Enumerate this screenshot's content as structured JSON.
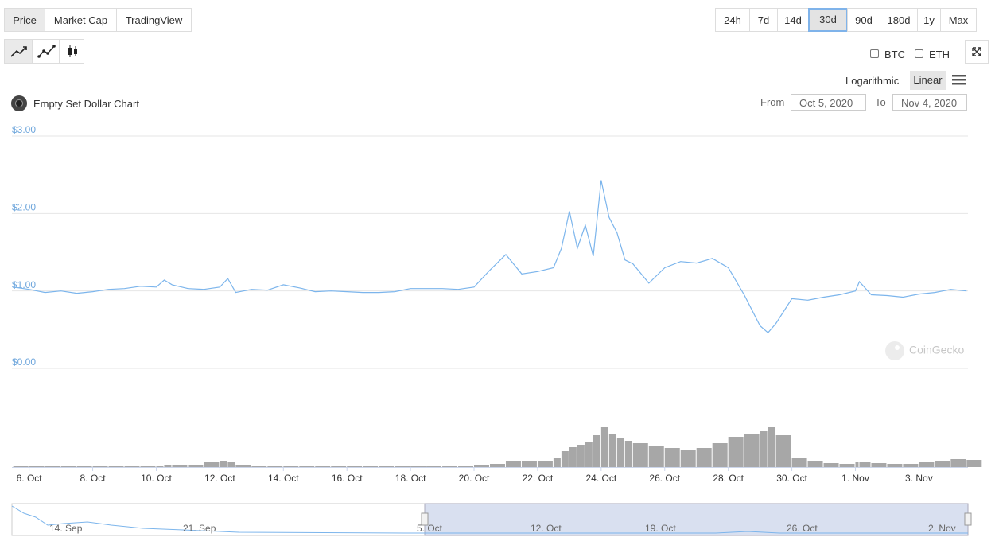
{
  "ui": {
    "tabs": [
      "Price",
      "Market Cap",
      "TradingView"
    ],
    "ranges": [
      "24h",
      "7d",
      "14d",
      "30d",
      "90d",
      "180d",
      "1y",
      "Max"
    ],
    "active_range": "30d",
    "compare": [
      "BTC",
      "ETH"
    ],
    "scales": [
      "Logarithmic",
      "Linear"
    ],
    "chart_name": "Empty Set Dollar Chart",
    "from_label": "From",
    "from_date": "Oct 5, 2020",
    "to_label": "To",
    "to_date": "Nov 4, 2020",
    "watermark": "CoinGecko",
    "navigator_labels": [
      "14. Sep",
      "21. Sep",
      "5. Oct",
      "12. Oct",
      "19. Oct",
      "26. Oct",
      "2. Nov"
    ]
  },
  "chart_data": {
    "type": "line",
    "color": "#7cb5ec",
    "volume_color": "#8a8a8a",
    "grid": true,
    "xlim": [
      "2020-10-05T11:00",
      "2020-11-04T13:00"
    ],
    "xticks": [
      {
        "value": "2020-10-06T00:00",
        "label": "6. Oct"
      },
      {
        "value": "2020-10-08T00:00",
        "label": "8. Oct"
      },
      {
        "value": "2020-10-10T00:00",
        "label": "10. Oct"
      },
      {
        "value": "2020-10-12T00:00",
        "label": "12. Oct"
      },
      {
        "value": "2020-10-14T00:00",
        "label": "14. Oct"
      },
      {
        "value": "2020-10-16T00:00",
        "label": "16. Oct"
      },
      {
        "value": "2020-10-18T00:00",
        "label": "18. Oct"
      },
      {
        "value": "2020-10-20T00:00",
        "label": "20. Oct"
      },
      {
        "value": "2020-10-22T00:00",
        "label": "22. Oct"
      },
      {
        "value": "2020-10-24T00:00",
        "label": "24. Oct"
      },
      {
        "value": "2020-10-26T00:00",
        "label": "26. Oct"
      },
      {
        "value": "2020-10-28T00:00",
        "label": "28. Oct"
      },
      {
        "value": "2020-10-30T00:00",
        "label": "30. Oct"
      },
      {
        "value": "2020-11-01T00:00",
        "label": "1. Nov"
      },
      {
        "value": "2020-11-03T00:00",
        "label": "3. Nov"
      }
    ],
    "ylim": [
      0,
      3
    ],
    "yticks": [
      {
        "value": 0,
        "label": "$0.00"
      },
      {
        "value": 1,
        "label": "$1.00"
      },
      {
        "value": 2,
        "label": "$2.00"
      },
      {
        "value": 3,
        "label": "$3.00"
      }
    ],
    "volume_lim": [
      0,
      60
    ],
    "x": [
      "2020-10-05T12:00",
      "2020-10-06T00:00",
      "2020-10-06T12:00",
      "2020-10-07T00:00",
      "2020-10-07T12:00",
      "2020-10-08T00:00",
      "2020-10-08T12:00",
      "2020-10-09T00:00",
      "2020-10-09T12:00",
      "2020-10-10T00:00",
      "2020-10-10T06:00",
      "2020-10-10T12:00",
      "2020-10-11T00:00",
      "2020-10-11T12:00",
      "2020-10-12T00:00",
      "2020-10-12T06:00",
      "2020-10-12T12:00",
      "2020-10-13T00:00",
      "2020-10-13T12:00",
      "2020-10-14T00:00",
      "2020-10-14T12:00",
      "2020-10-15T00:00",
      "2020-10-15T12:00",
      "2020-10-16T00:00",
      "2020-10-16T12:00",
      "2020-10-17T00:00",
      "2020-10-17T12:00",
      "2020-10-18T00:00",
      "2020-10-18T12:00",
      "2020-10-19T00:00",
      "2020-10-19T12:00",
      "2020-10-20T00:00",
      "2020-10-20T12:00",
      "2020-10-21T00:00",
      "2020-10-21T12:00",
      "2020-10-22T00:00",
      "2020-10-22T12:00",
      "2020-10-22T18:00",
      "2020-10-23T00:00",
      "2020-10-23T06:00",
      "2020-10-23T12:00",
      "2020-10-23T18:00",
      "2020-10-24T00:00",
      "2020-10-24T06:00",
      "2020-10-24T12:00",
      "2020-10-24T18:00",
      "2020-10-25T00:00",
      "2020-10-25T12:00",
      "2020-10-26T00:00",
      "2020-10-26T12:00",
      "2020-10-27T00:00",
      "2020-10-27T12:00",
      "2020-10-28T00:00",
      "2020-10-28T12:00",
      "2020-10-29T00:00",
      "2020-10-29T06:00",
      "2020-10-29T12:00",
      "2020-10-30T00:00",
      "2020-10-30T12:00",
      "2020-10-31T00:00",
      "2020-10-31T12:00",
      "2020-11-01T00:00",
      "2020-11-01T03:00",
      "2020-11-01T12:00",
      "2020-11-02T00:00",
      "2020-11-02T12:00",
      "2020-11-03T00:00",
      "2020-11-03T12:00",
      "2020-11-04T00:00",
      "2020-11-04T12:00"
    ],
    "values": [
      1.05,
      1.02,
      0.98,
      1.0,
      0.97,
      0.99,
      1.02,
      1.03,
      1.06,
      1.05,
      1.14,
      1.08,
      1.03,
      1.02,
      1.05,
      1.16,
      0.98,
      1.02,
      1.01,
      1.08,
      1.04,
      0.99,
      1.0,
      0.99,
      0.98,
      0.98,
      0.99,
      1.03,
      1.03,
      1.03,
      1.02,
      1.05,
      1.27,
      1.47,
      1.22,
      1.25,
      1.3,
      1.55,
      2.03,
      1.55,
      1.85,
      1.45,
      2.43,
      1.95,
      1.75,
      1.4,
      1.35,
      1.1,
      1.3,
      1.38,
      1.36,
      1.42,
      1.3,
      0.95,
      0.55,
      0.46,
      0.58,
      0.9,
      0.88,
      0.92,
      0.95,
      1.0,
      1.12,
      0.95,
      0.94,
      0.92,
      0.96,
      0.98,
      1.02,
      1.0
    ],
    "volume": [
      1,
      1,
      1,
      1,
      1,
      1,
      1,
      1,
      1,
      1,
      2,
      2,
      3,
      6,
      7,
      6,
      3,
      1,
      1,
      1,
      1,
      1,
      1,
      1,
      1,
      1,
      1,
      1,
      1,
      1,
      1,
      2,
      4,
      7,
      8,
      8,
      12,
      20,
      25,
      28,
      32,
      40,
      50,
      42,
      36,
      33,
      30,
      27,
      24,
      22,
      24,
      30,
      38,
      42,
      45,
      50,
      40,
      12,
      8,
      5,
      4,
      6,
      6,
      5,
      4,
      4,
      6,
      8,
      10,
      9
    ]
  }
}
